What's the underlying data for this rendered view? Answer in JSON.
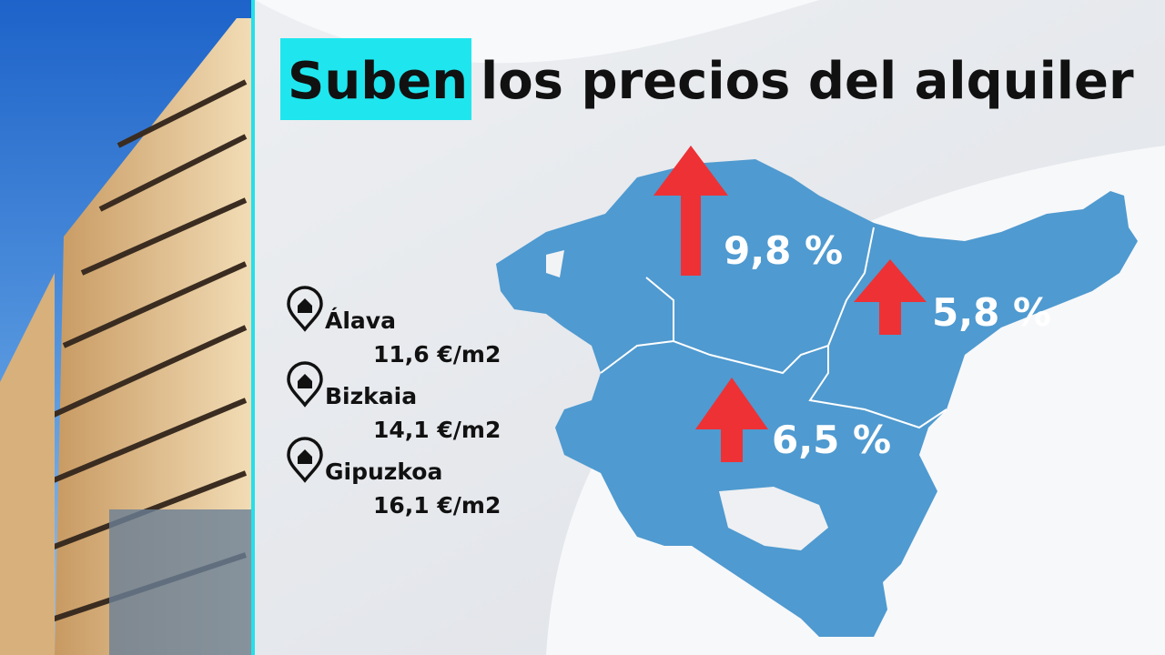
{
  "header": {
    "highlight": "Suben",
    "title": "los precios del alquiler"
  },
  "provinces": [
    {
      "name": "Álava",
      "price": "11,6 €/m2"
    },
    {
      "name": "Bizkaia",
      "price": "14,1 €/m2"
    },
    {
      "name": "Gipuzkoa",
      "price": "16,1 €/m2"
    }
  ],
  "map_labels": [
    "9,8 %",
    "5,8 %",
    "6,5 %"
  ]
}
